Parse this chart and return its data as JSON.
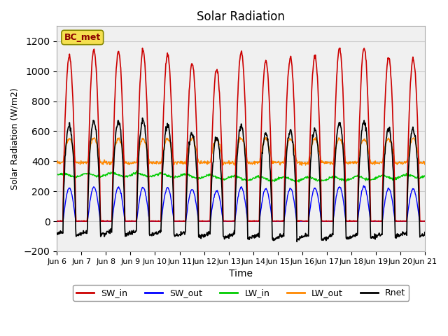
{
  "title": "Solar Radiation",
  "xlabel": "Time",
  "ylabel": "Solar Radiation (W/m2)",
  "ylim": [
    -200,
    1300
  ],
  "yticks": [
    -200,
    0,
    200,
    400,
    600,
    800,
    1000,
    1200
  ],
  "station_label": "BC_met",
  "legend": [
    "SW_in",
    "SW_out",
    "LW_in",
    "LW_out",
    "Rnet"
  ],
  "colors": {
    "SW_in": "#cc0000",
    "SW_out": "#0000ff",
    "LW_in": "#00cc00",
    "LW_out": "#ff8800",
    "Rnet": "#000000"
  },
  "num_days": 15,
  "background_color": "#f0f0f0",
  "grid_color": "#cccccc",
  "day_peaks_sw": [
    1100,
    1140,
    1130,
    1130,
    1110,
    1050,
    1010,
    1130,
    1070,
    1090,
    1100,
    1150,
    1160,
    1090,
    1080
  ],
  "night_rnet": -100,
  "lw_in_base": 295,
  "lw_out_base": 390
}
